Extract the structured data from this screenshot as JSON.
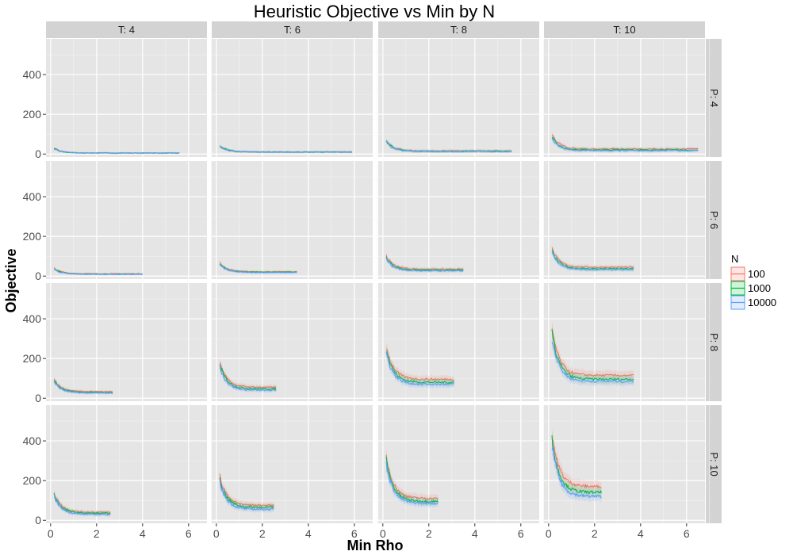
{
  "chart_data": {
    "type": "line",
    "title": "Heuristic Objective vs Min by N",
    "xlabel": "Min Rho",
    "ylabel": "Objective",
    "xlim": [
      -0.2,
      6.8
    ],
    "ylim": [
      -15,
      580
    ],
    "x_ticks": [
      0,
      2,
      4,
      6
    ],
    "y_ticks": [
      0,
      200,
      400
    ],
    "grid": true,
    "legend": {
      "title": "N",
      "position": "right",
      "entries": [
        "100",
        "1000",
        "10000"
      ]
    },
    "colors": {
      "100": "#F8766D",
      "1000": "#00BA38",
      "10000": "#619CFF",
      "panel_bg": "#E5E5E5",
      "strip_bg": "#D3D3D3"
    },
    "facet_cols": [
      "T: 4",
      "T: 6",
      "T: 8",
      "T: 10"
    ],
    "facet_rows": [
      "P: 4",
      "P: 6",
      "P: 8",
      "P: 10"
    ],
    "panels": [
      {
        "row": 0,
        "col": 0,
        "xmax": 5.6,
        "spike": 30,
        "tail": [
          5,
          5,
          5
        ],
        "jag": 8
      },
      {
        "row": 0,
        "col": 1,
        "xmax": 5.9,
        "spike": 45,
        "tail": [
          10,
          10,
          10
        ],
        "jag": 10
      },
      {
        "row": 0,
        "col": 2,
        "xmax": 5.6,
        "spike": 70,
        "tail": [
          15,
          14,
          13
        ],
        "jag": 14
      },
      {
        "row": 0,
        "col": 3,
        "xmax": 6.5,
        "spike": 95,
        "tail": [
          25,
          20,
          18
        ],
        "jag": 18
      },
      {
        "row": 1,
        "col": 0,
        "xmax": 4.0,
        "spike": 40,
        "tail": [
          12,
          10,
          9
        ],
        "jag": 8
      },
      {
        "row": 1,
        "col": 1,
        "xmax": 3.5,
        "spike": 65,
        "tail": [
          22,
          20,
          18
        ],
        "jag": 10
      },
      {
        "row": 1,
        "col": 2,
        "xmax": 3.5,
        "spike": 100,
        "tail": [
          35,
          30,
          27
        ],
        "jag": 15
      },
      {
        "row": 1,
        "col": 3,
        "xmax": 3.7,
        "spike": 135,
        "tail": [
          45,
          37,
          32
        ],
        "jag": 18
      },
      {
        "row": 2,
        "col": 0,
        "xmax": 2.7,
        "spike": 95,
        "tail": [
          33,
          29,
          26
        ],
        "jag": 12
      },
      {
        "row": 2,
        "col": 1,
        "xmax": 2.6,
        "spike": 180,
        "tail": [
          55,
          47,
          40
        ],
        "jag": 20
      },
      {
        "row": 2,
        "col": 2,
        "xmax": 3.1,
        "spike": 260,
        "tail": [
          95,
          80,
          70
        ],
        "jag": 30
      },
      {
        "row": 2,
        "col": 3,
        "xmax": 3.7,
        "spike": 350,
        "tail": [
          115,
          95,
          85
        ],
        "jag": 35
      },
      {
        "row": 3,
        "col": 0,
        "xmax": 2.6,
        "spike": 140,
        "tail": [
          40,
          35,
          30
        ],
        "jag": 18
      },
      {
        "row": 3,
        "col": 1,
        "xmax": 2.5,
        "spike": 220,
        "tail": [
          75,
          65,
          55
        ],
        "jag": 25
      },
      {
        "row": 3,
        "col": 2,
        "xmax": 2.4,
        "spike": 320,
        "tail": [
          110,
          95,
          85
        ],
        "jag": 30
      },
      {
        "row": 3,
        "col": 3,
        "xmax": 2.3,
        "spike": 430,
        "tail": [
          170,
          140,
          120
        ],
        "jag": 40
      }
    ]
  }
}
